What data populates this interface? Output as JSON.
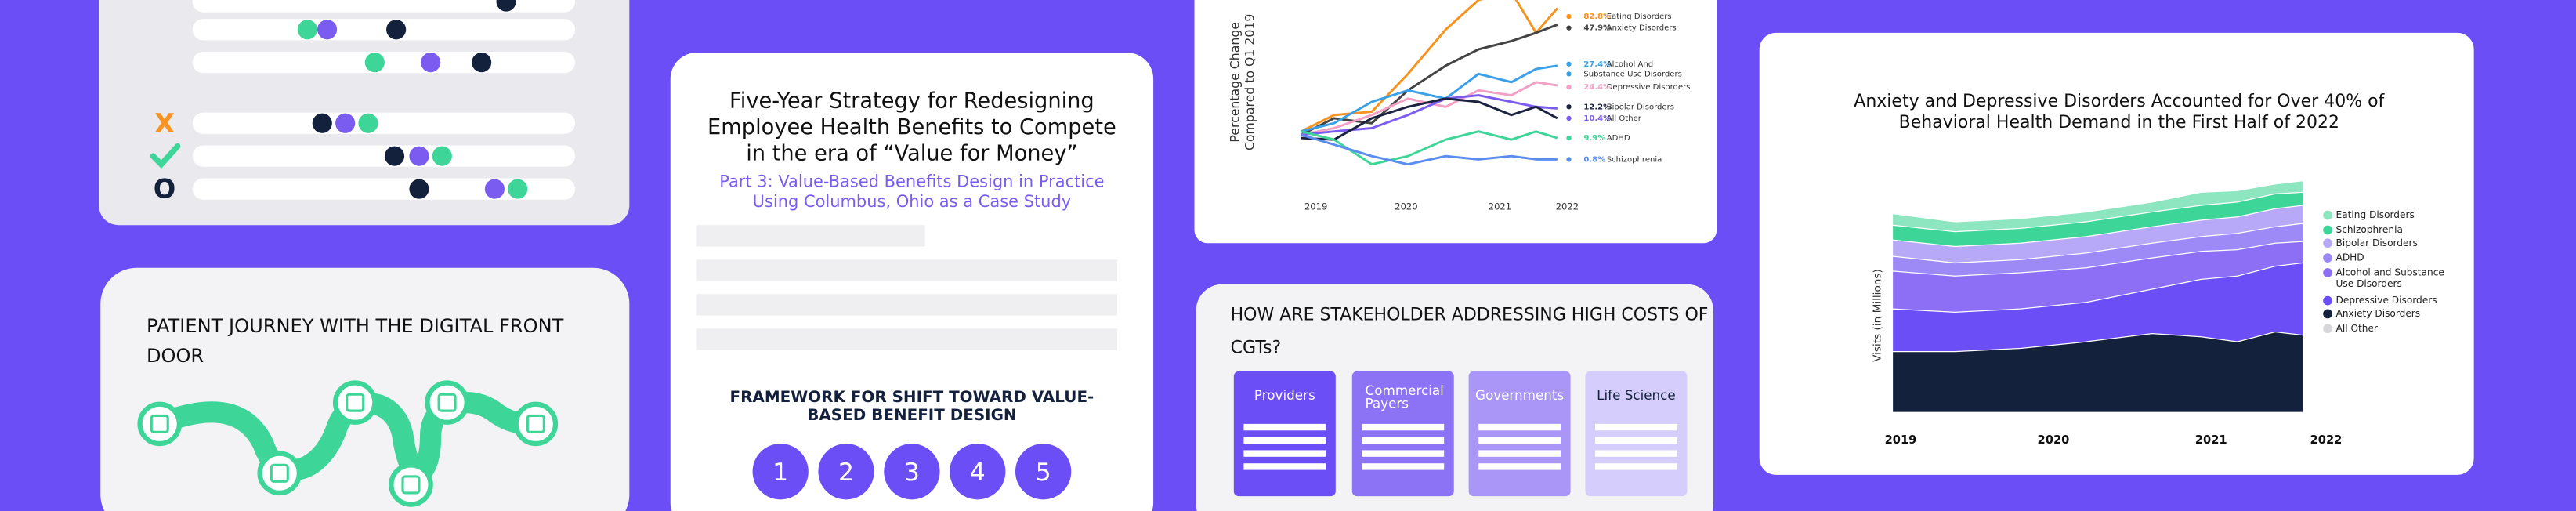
{
  "decision_card": {
    "marks": [
      "X",
      "O"
    ]
  },
  "journey_card": {
    "title_lines": [
      "PATIENT JOURNEY WITH THE DIGITAL FRONT",
      "DOOR"
    ]
  },
  "report_card": {
    "title_lines": [
      "Five-Year Strategy for Redesigning",
      "Employee Health Benefits to Compete",
      "in the era of “Value for Money”"
    ],
    "subtitle_lines": [
      "Part 3: Value-Based Benefits Design in Practice",
      "Using Columbus, Ohio as a Case Study"
    ],
    "framework_lines": [
      "FRAMEWORK FOR SHIFT TOWARD VALUE-",
      "BASED BENEFIT DESIGN"
    ],
    "steps": [
      "1",
      "2",
      "3",
      "4",
      "5"
    ]
  },
  "trend_card": {
    "y_label_lines": [
      "Percentage Change",
      "Compared to Q1 2019"
    ],
    "years": [
      "2019",
      "2020",
      "2021",
      "2022"
    ],
    "labels": [
      {
        "pct": "82.8%",
        "name": "Eating Disorders"
      },
      {
        "pct": "47.9%",
        "name": "Anxiety Disorders"
      },
      {
        "pct": "27.4%",
        "name": "Alcohol And"
      },
      {
        "pct": "",
        "name": "Substance Use Disorders"
      },
      {
        "pct": "24.4%",
        "name": "Depressive Disorders"
      },
      {
        "pct": "12.2%",
        "name": "Bipolar Disorders"
      },
      {
        "pct": "10.4%",
        "name": "All Other"
      },
      {
        "pct": "9.9%",
        "name": "ADHD"
      },
      {
        "pct": "0.8%",
        "name": "Schizophrenia"
      }
    ]
  },
  "stakeholder_card": {
    "title_lines": [
      "HOW ARE STAKEHOLDER ADDRESSING HIGH COSTS OF",
      "CGTs?"
    ],
    "columns": [
      [
        "Providers"
      ],
      [
        "Commercial",
        "Payers"
      ],
      [
        "Governments"
      ],
      [
        "Life Science"
      ]
    ]
  },
  "area_card": {
    "title_lines": [
      "Anxiety and Depressive Disorders Accounted for Over 40% of",
      "Behavioral Health Demand in the First Half of 2022"
    ],
    "y_label": "Visits (in Millions)",
    "years": [
      "2019",
      "2020",
      "2021",
      "2022"
    ],
    "legend": [
      [
        "Eating Disorders"
      ],
      [
        "Schizophrenia"
      ],
      [
        "Bipolar Disorders"
      ],
      [
        "ADHD"
      ],
      [
        "Alcohol and Substance",
        "Use Disorders"
      ],
      [
        "Depressive Disorders"
      ],
      [
        "Anxiety Disorders"
      ],
      [
        "All Other"
      ]
    ]
  }
}
